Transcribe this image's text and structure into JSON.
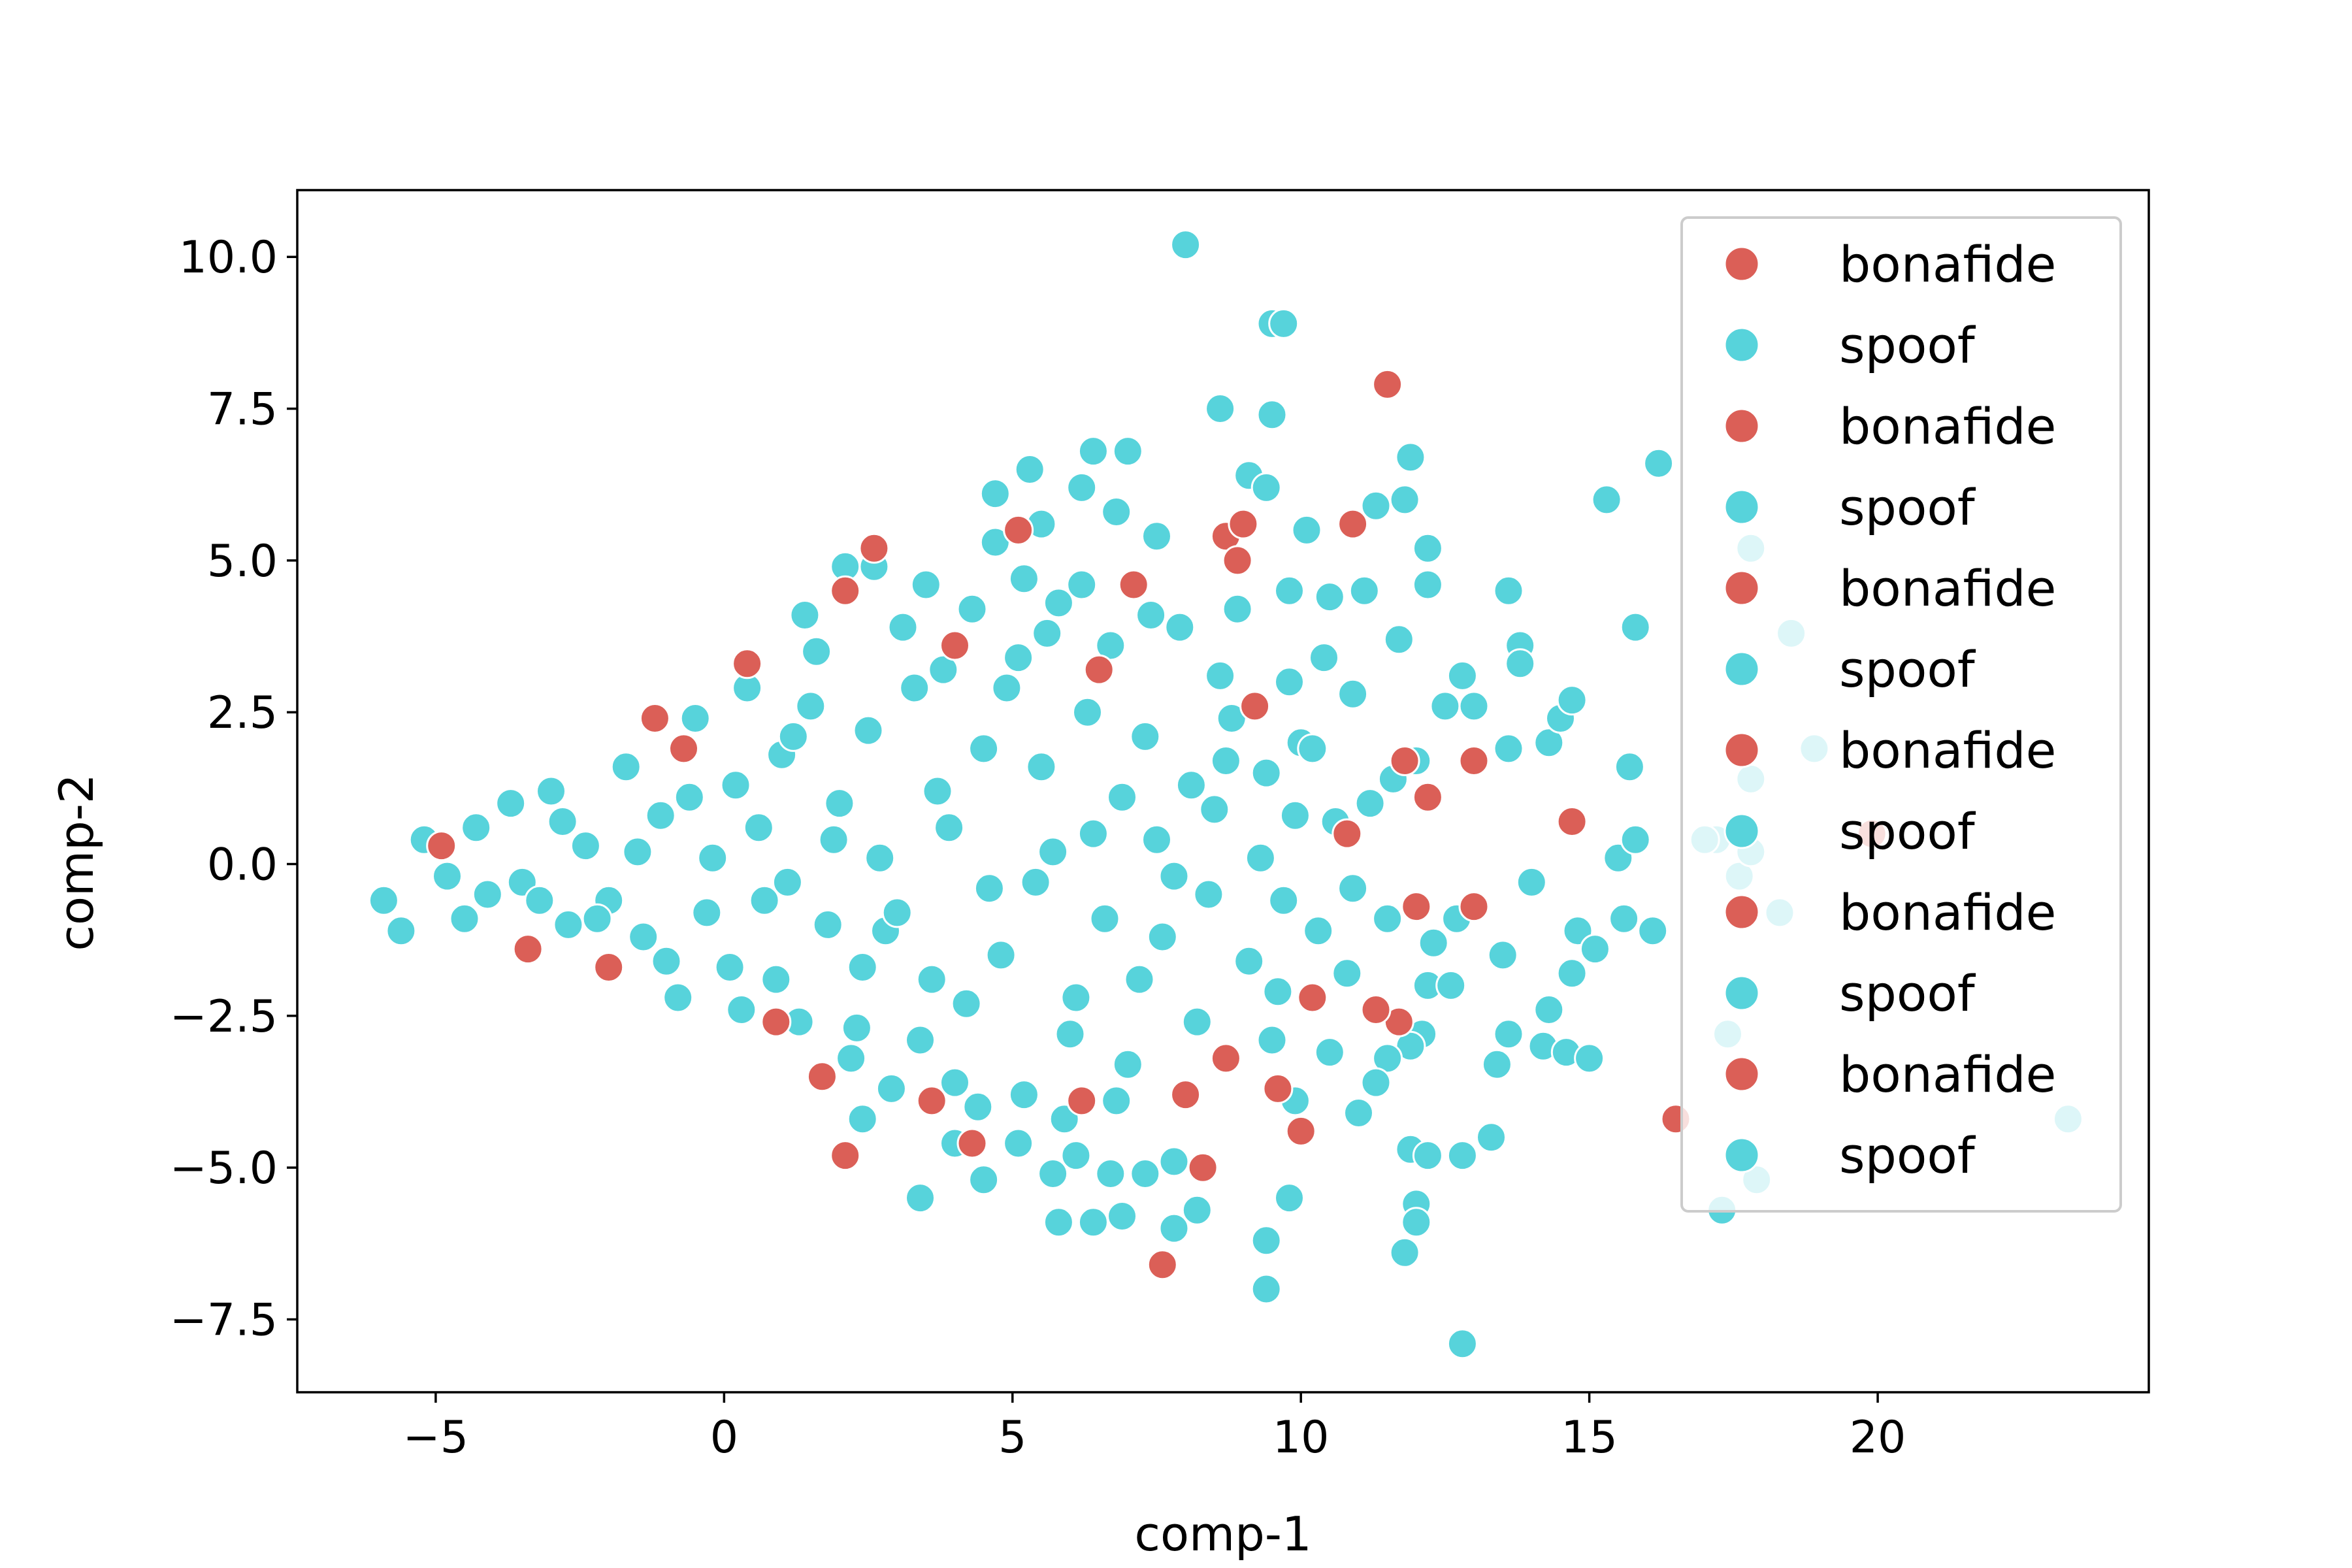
{
  "chart_data": {
    "type": "scatter",
    "title": "",
    "xlabel": "comp-1",
    "ylabel": "comp-2",
    "xlim": [
      -7.4,
      24.7
    ],
    "ylim": [
      -8.7,
      11.1
    ],
    "xticks": [
      -5,
      0,
      5,
      10,
      15,
      20
    ],
    "yticks": [
      -7.5,
      -5.0,
      -2.5,
      0.0,
      2.5,
      5.0,
      7.5,
      10.0
    ],
    "xtick_labels": [
      "−5",
      "0",
      "5",
      "10",
      "15",
      "20"
    ],
    "ytick_labels": [
      "−7.5",
      "−5.0",
      "−2.5",
      "0.0",
      "2.5",
      "5.0",
      "7.5",
      "10.0"
    ],
    "grid": false,
    "legend_position": "top-right",
    "colors": {
      "bonafide": "#db5f57",
      "spoof": "#57d3db"
    },
    "legend": [
      {
        "label": "bonafide",
        "color": "#db5f57"
      },
      {
        "label": "spoof",
        "color": "#57d3db"
      },
      {
        "label": "bonafide",
        "color": "#db5f57"
      },
      {
        "label": "spoof",
        "color": "#57d3db"
      },
      {
        "label": "bonafide",
        "color": "#db5f57"
      },
      {
        "label": "spoof",
        "color": "#57d3db"
      },
      {
        "label": "bonafide",
        "color": "#db5f57"
      },
      {
        "label": "spoof",
        "color": "#57d3db"
      },
      {
        "label": "bonafide",
        "color": "#db5f57"
      },
      {
        "label": "spoof",
        "color": "#57d3db"
      },
      {
        "label": "bonafide",
        "color": "#db5f57"
      },
      {
        "label": "spoof",
        "color": "#57d3db"
      }
    ],
    "series": [
      {
        "name": "bonafide",
        "color": "#db5f57",
        "points": [
          [
            11.5,
            7.9
          ],
          [
            2.6,
            5.2
          ],
          [
            10.9,
            5.6
          ],
          [
            8.7,
            5.4
          ],
          [
            9.0,
            5.6
          ],
          [
            8.9,
            5.0
          ],
          [
            5.1,
            5.5
          ],
          [
            7.1,
            4.6
          ],
          [
            2.1,
            4.5
          ],
          [
            -1.2,
            2.4
          ],
          [
            0.4,
            3.3
          ],
          [
            -4.9,
            0.3
          ],
          [
            -3.4,
            -1.4
          ],
          [
            -2.0,
            -1.7
          ],
          [
            2.1,
            -4.8
          ],
          [
            4.3,
            -4.6
          ],
          [
            7.6,
            -6.6
          ],
          [
            8.3,
            -5.0
          ],
          [
            10.0,
            -4.4
          ],
          [
            9.6,
            -3.7
          ],
          [
            8.7,
            -3.2
          ],
          [
            11.7,
            -2.6
          ],
          [
            11.3,
            -2.4
          ],
          [
            10.2,
            -2.2
          ],
          [
            13.0,
            1.7
          ],
          [
            14.7,
            0.7
          ],
          [
            12.0,
            -0.7
          ],
          [
            13.0,
            -0.7
          ],
          [
            16.5,
            -4.2
          ],
          [
            19.9,
            0.5
          ],
          [
            9.2,
            2.6
          ],
          [
            10.8,
            0.5
          ],
          [
            12.2,
            1.1
          ],
          [
            11.8,
            1.7
          ],
          [
            6.5,
            3.2
          ],
          [
            4.0,
            3.6
          ],
          [
            1.7,
            -3.5
          ],
          [
            3.6,
            -3.9
          ],
          [
            6.2,
            -3.9
          ],
          [
            8.0,
            -3.8
          ],
          [
            -0.7,
            1.9
          ],
          [
            0.9,
            -2.6
          ]
        ]
      },
      {
        "name": "spoof",
        "color": "#57d3db",
        "points": [
          [
            8.0,
            10.2
          ],
          [
            9.5,
            8.9
          ],
          [
            9.7,
            8.9
          ],
          [
            8.6,
            7.5
          ],
          [
            9.5,
            7.4
          ],
          [
            6.4,
            6.8
          ],
          [
            7.0,
            6.8
          ],
          [
            5.3,
            6.5
          ],
          [
            11.9,
            6.7
          ],
          [
            16.2,
            6.6
          ],
          [
            15.3,
            6.0
          ],
          [
            9.1,
            6.4
          ],
          [
            9.4,
            6.2
          ],
          [
            6.2,
            6.2
          ],
          [
            11.3,
            5.9
          ],
          [
            11.8,
            6.0
          ],
          [
            4.7,
            6.1
          ],
          [
            6.8,
            5.8
          ],
          [
            5.5,
            5.6
          ],
          [
            7.5,
            5.4
          ],
          [
            10.1,
            5.5
          ],
          [
            12.2,
            5.2
          ],
          [
            17.8,
            5.2
          ],
          [
            2.1,
            4.9
          ],
          [
            2.6,
            4.9
          ],
          [
            5.2,
            4.7
          ],
          [
            9.8,
            4.5
          ],
          [
            10.5,
            4.4
          ],
          [
            11.1,
            4.5
          ],
          [
            12.2,
            4.6
          ],
          [
            13.6,
            4.5
          ],
          [
            15.8,
            3.9
          ],
          [
            18.5,
            3.8
          ],
          [
            11.7,
            3.7
          ],
          [
            13.8,
            3.6
          ],
          [
            13.8,
            3.3
          ],
          [
            12.8,
            3.1
          ],
          [
            10.4,
            3.4
          ],
          [
            12.5,
            2.6
          ],
          [
            13.0,
            2.6
          ],
          [
            14.3,
            2.0
          ],
          [
            14.5,
            2.4
          ],
          [
            14.7,
            2.7
          ],
          [
            15.7,
            1.6
          ],
          [
            18.9,
            1.9
          ],
          [
            13.6,
            1.9
          ],
          [
            12.0,
            1.7
          ],
          [
            11.6,
            1.4
          ],
          [
            10.9,
            2.8
          ],
          [
            17.8,
            1.4
          ],
          [
            17.2,
            0.4
          ],
          [
            17.6,
            -0.2
          ],
          [
            17.8,
            0.2
          ],
          [
            15.5,
            0.1
          ],
          [
            15.8,
            0.4
          ],
          [
            14.0,
            -0.3
          ],
          [
            14.8,
            -1.1
          ],
          [
            16.1,
            -1.1
          ],
          [
            15.6,
            -0.9
          ],
          [
            15.1,
            -1.4
          ],
          [
            13.5,
            -1.5
          ],
          [
            12.3,
            -1.3
          ],
          [
            12.7,
            -0.9
          ],
          [
            12.2,
            -2.0
          ],
          [
            12.6,
            -2.0
          ],
          [
            13.6,
            -2.8
          ],
          [
            14.3,
            -2.4
          ],
          [
            14.7,
            -1.8
          ],
          [
            14.2,
            -3.0
          ],
          [
            14.6,
            -3.1
          ],
          [
            15.0,
            -3.2
          ],
          [
            13.4,
            -3.3
          ],
          [
            12.1,
            -2.8
          ],
          [
            11.9,
            -3.0
          ],
          [
            11.5,
            -3.2
          ],
          [
            11.0,
            -4.1
          ],
          [
            11.9,
            -4.7
          ],
          [
            12.2,
            -4.8
          ],
          [
            12.8,
            -4.8
          ],
          [
            13.3,
            -4.5
          ],
          [
            12.0,
            -5.6
          ],
          [
            12.0,
            -5.9
          ],
          [
            11.8,
            -6.4
          ],
          [
            9.4,
            -6.2
          ],
          [
            9.8,
            -5.5
          ],
          [
            9.4,
            -7.0
          ],
          [
            12.8,
            -7.9
          ],
          [
            17.3,
            -5.7
          ],
          [
            17.9,
            -5.2
          ],
          [
            23.3,
            -4.2
          ],
          [
            17.4,
            -2.8
          ],
          [
            18.3,
            -0.8
          ],
          [
            17.0,
            0.4
          ],
          [
            8.2,
            -5.7
          ],
          [
            7.3,
            -5.1
          ],
          [
            6.7,
            -5.1
          ],
          [
            5.7,
            -5.1
          ],
          [
            6.4,
            -5.9
          ],
          [
            5.8,
            -5.9
          ],
          [
            6.9,
            -5.8
          ],
          [
            7.8,
            -6.0
          ],
          [
            3.4,
            -5.5
          ],
          [
            4.5,
            -5.2
          ],
          [
            6.1,
            -4.8
          ],
          [
            2.4,
            -4.2
          ],
          [
            4.0,
            -4.6
          ],
          [
            5.1,
            -4.6
          ],
          [
            7.8,
            -4.9
          ],
          [
            9.9,
            -3.9
          ],
          [
            -5.9,
            -0.6
          ],
          [
            -5.6,
            -1.1
          ],
          [
            -5.2,
            0.4
          ],
          [
            -4.5,
            -0.9
          ],
          [
            -4.8,
            -0.2
          ],
          [
            -4.3,
            0.6
          ],
          [
            -4.1,
            -0.5
          ],
          [
            -3.7,
            1.0
          ],
          [
            -3.5,
            -0.3
          ],
          [
            -3.0,
            1.2
          ],
          [
            -2.7,
            -1.0
          ],
          [
            -2.4,
            0.3
          ],
          [
            -2.0,
            -0.6
          ],
          [
            -1.7,
            1.6
          ],
          [
            -1.4,
            -1.2
          ],
          [
            -1.1,
            0.8
          ],
          [
            -0.8,
            -2.2
          ],
          [
            -0.5,
            2.4
          ],
          [
            -0.2,
            0.1
          ],
          [
            0.1,
            -1.7
          ],
          [
            0.4,
            2.9
          ],
          [
            0.7,
            -0.6
          ],
          [
            1.0,
            1.8
          ],
          [
            1.3,
            -2.6
          ],
          [
            1.6,
            3.5
          ],
          [
            1.9,
            0.4
          ],
          [
            2.2,
            -3.2
          ],
          [
            2.5,
            2.2
          ],
          [
            2.8,
            -1.1
          ],
          [
            3.1,
            3.9
          ],
          [
            3.4,
            -2.9
          ],
          [
            3.7,
            1.2
          ],
          [
            4.0,
            -3.6
          ],
          [
            4.3,
            4.2
          ],
          [
            4.6,
            -0.4
          ],
          [
            4.9,
            2.9
          ],
          [
            5.2,
            -3.8
          ],
          [
            5.5,
            1.6
          ],
          [
            5.8,
            4.3
          ],
          [
            6.1,
            -2.2
          ],
          [
            6.4,
            0.5
          ],
          [
            6.7,
            3.6
          ],
          [
            7.0,
            -3.3
          ],
          [
            7.3,
            2.1
          ],
          [
            7.6,
            -1.2
          ],
          [
            7.9,
            3.9
          ],
          [
            8.2,
            -2.6
          ],
          [
            8.5,
            0.9
          ],
          [
            8.8,
            2.4
          ],
          [
            9.1,
            -1.6
          ],
          [
            9.4,
            1.5
          ],
          [
            9.7,
            -0.6
          ],
          [
            10.0,
            2.0
          ],
          [
            10.3,
            -1.1
          ],
          [
            10.6,
            0.7
          ],
          [
            10.9,
            -0.4
          ],
          [
            11.2,
            1.0
          ],
          [
            11.5,
            -0.9
          ],
          [
            -1.0,
            -1.6
          ],
          [
            0.2,
            1.3
          ],
          [
            1.1,
            -0.3
          ],
          [
            2.0,
            1.0
          ],
          [
            3.0,
            -0.8
          ],
          [
            3.9,
            0.6
          ],
          [
            4.8,
            -1.5
          ],
          [
            5.7,
            0.2
          ],
          [
            6.6,
            -0.9
          ],
          [
            7.5,
            0.4
          ],
          [
            8.4,
            -0.5
          ],
          [
            9.3,
            0.1
          ],
          [
            -2.8,
            0.7
          ],
          [
            -2.2,
            -0.9
          ],
          [
            -0.3,
            -0.8
          ],
          [
            0.6,
            0.6
          ],
          [
            1.5,
            2.6
          ],
          [
            2.4,
            -1.7
          ],
          [
            3.3,
            2.9
          ],
          [
            4.2,
            -2.3
          ],
          [
            5.1,
            3.4
          ],
          [
            6.0,
            -2.8
          ],
          [
            6.9,
            1.1
          ],
          [
            7.8,
            -0.2
          ],
          [
            8.7,
            1.7
          ],
          [
            9.6,
            -2.1
          ],
          [
            2.7,
            0.1
          ],
          [
            5.4,
            -0.3
          ],
          [
            6.3,
            2.5
          ],
          [
            4.5,
            1.9
          ],
          [
            3.6,
            -1.9
          ],
          [
            1.8,
            -1.0
          ],
          [
            0.9,
            -1.9
          ],
          [
            -1.5,
            0.2
          ],
          [
            -3.2,
            -0.6
          ],
          [
            8.1,
            1.3
          ],
          [
            7.2,
            -1.9
          ],
          [
            9.9,
            0.8
          ],
          [
            10.8,
            -1.8
          ],
          [
            4.4,
            -4.0
          ],
          [
            5.9,
            -4.2
          ],
          [
            6.8,
            -3.9
          ],
          [
            2.9,
            -3.7
          ],
          [
            3.8,
            3.2
          ],
          [
            5.6,
            3.8
          ],
          [
            7.4,
            4.1
          ],
          [
            8.6,
            3.1
          ],
          [
            1.2,
            2.1
          ],
          [
            -0.6,
            1.1
          ],
          [
            0.3,
            -2.4
          ],
          [
            2.3,
            -2.7
          ],
          [
            6.2,
            4.6
          ],
          [
            8.9,
            4.2
          ],
          [
            9.5,
            -2.9
          ],
          [
            10.5,
            -3.1
          ],
          [
            11.3,
            -3.6
          ],
          [
            10.2,
            1.9
          ],
          [
            9.8,
            3.0
          ],
          [
            4.7,
            5.3
          ],
          [
            3.5,
            4.6
          ],
          [
            1.4,
            4.1
          ]
        ]
      }
    ]
  }
}
